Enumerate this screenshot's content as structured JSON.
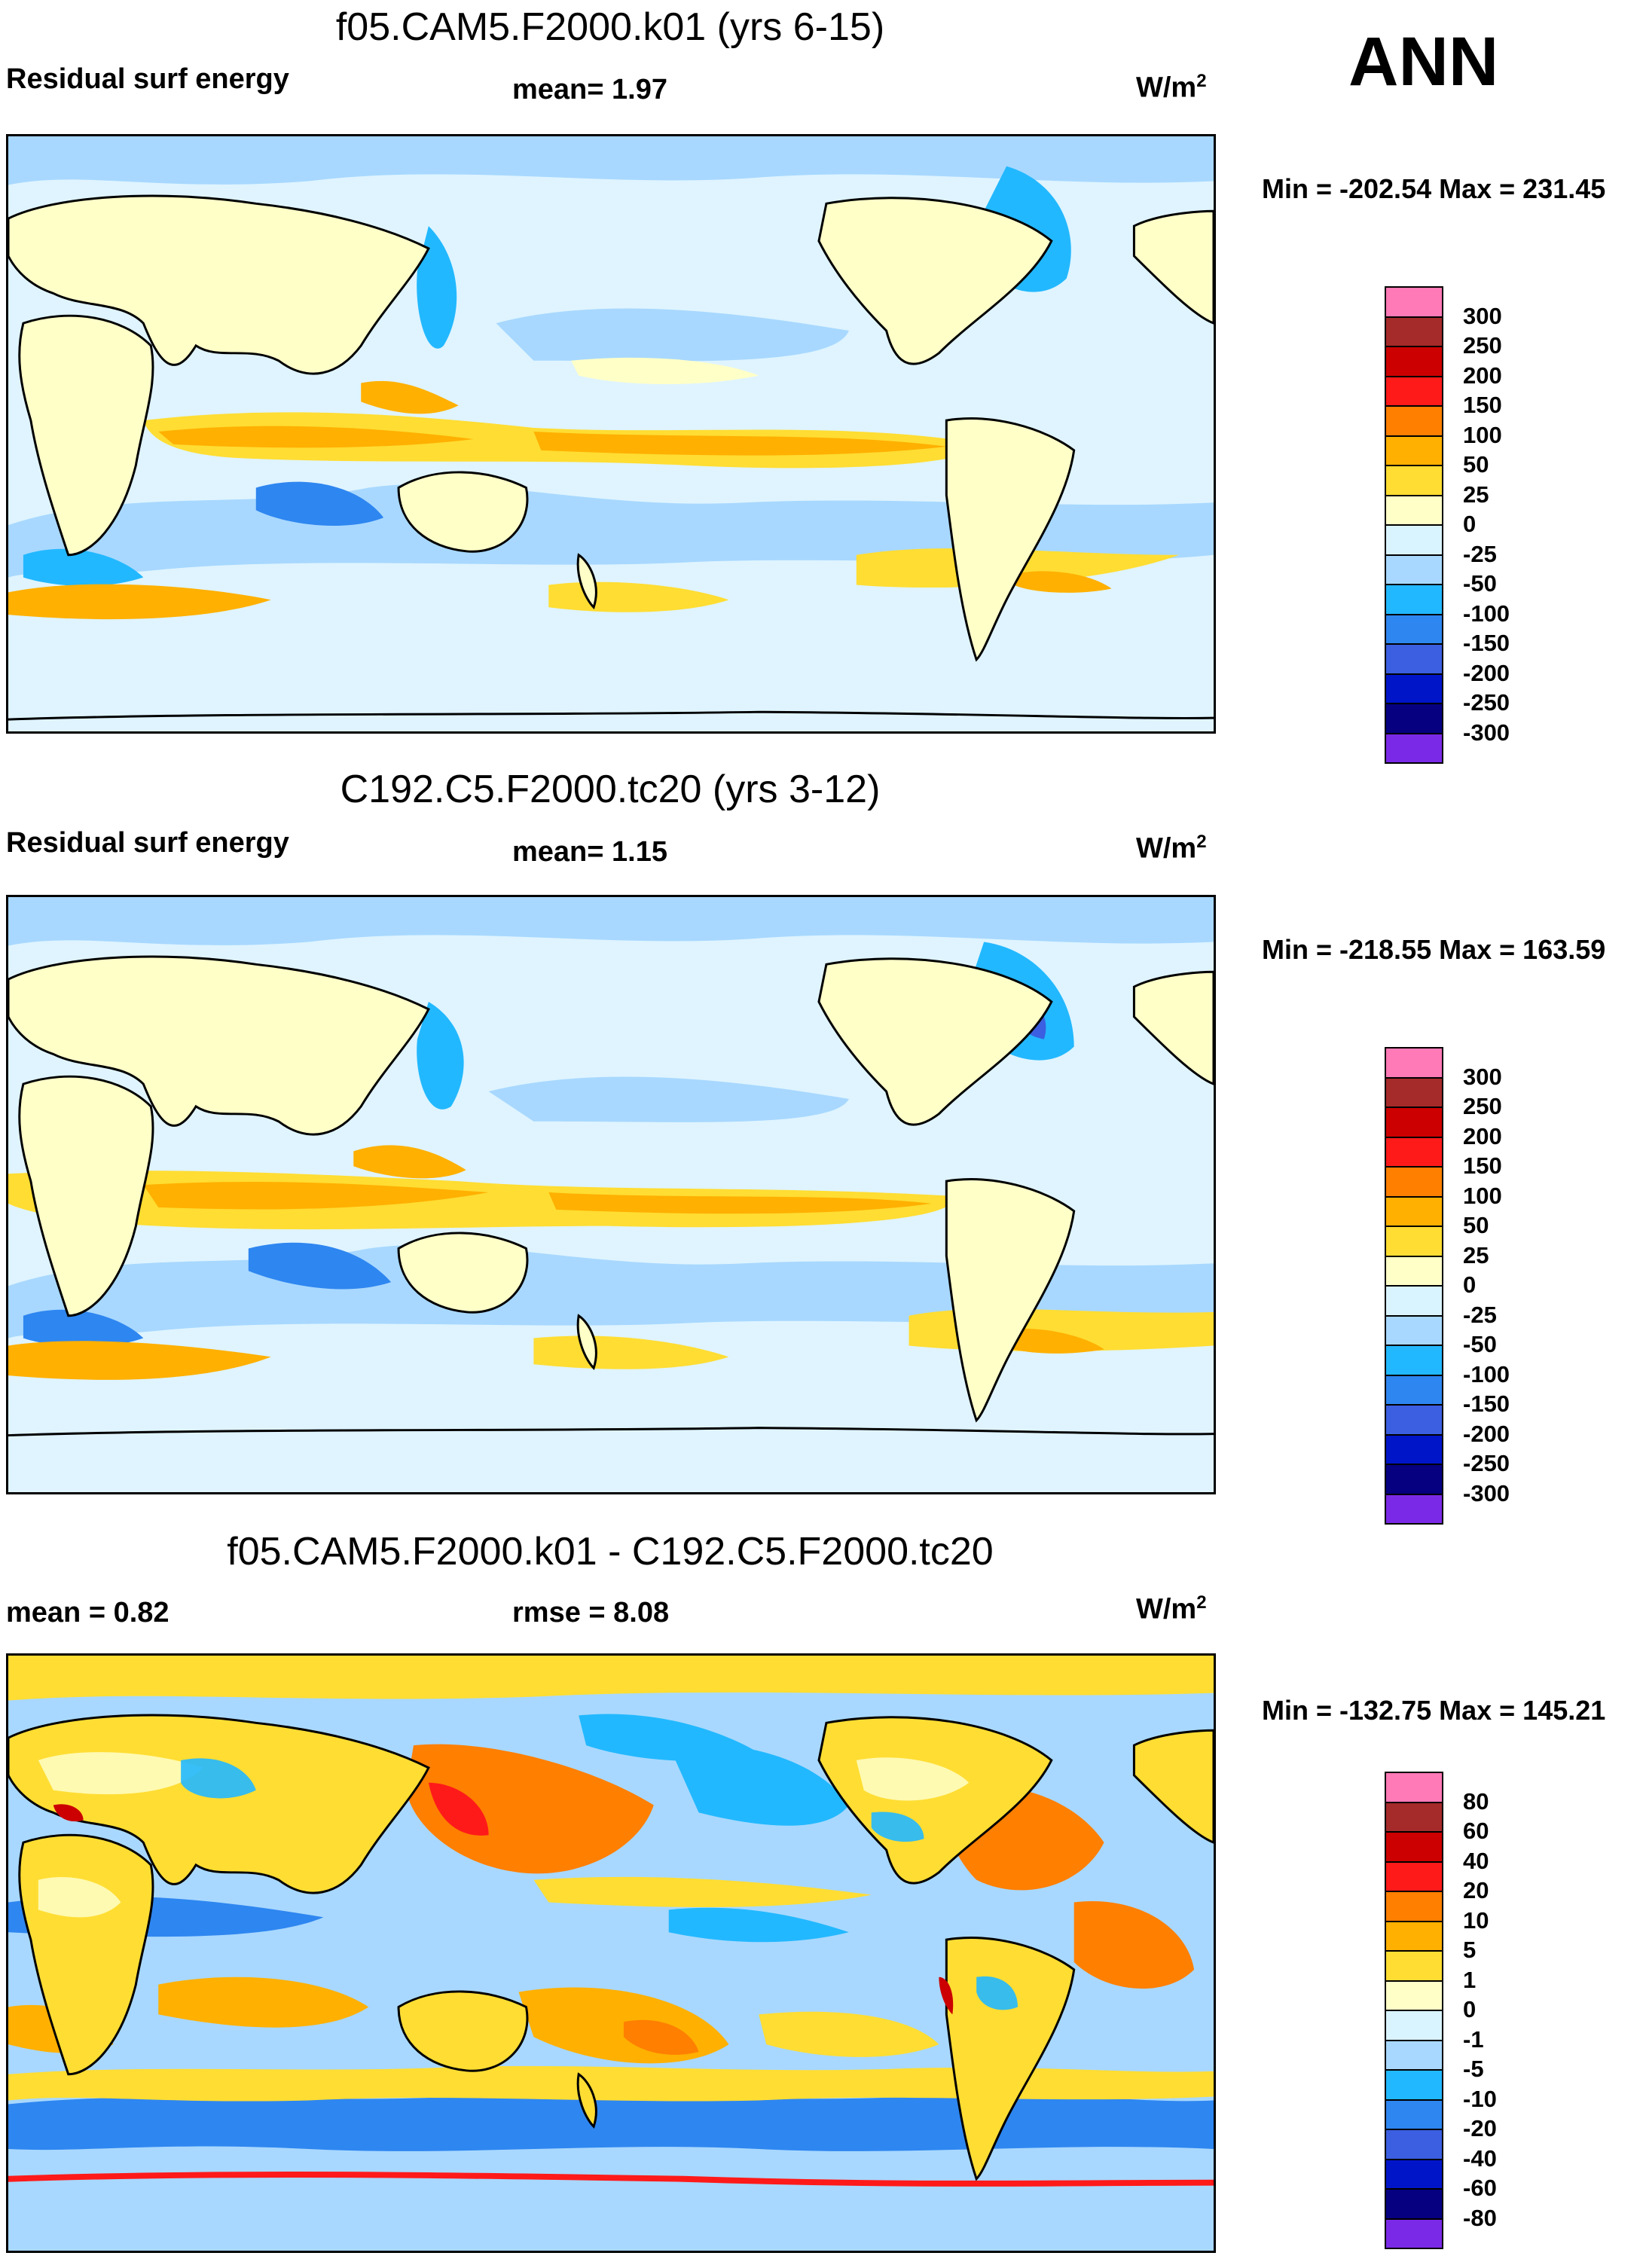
{
  "season": "ANN",
  "panels": [
    {
      "id": "panel1",
      "title": "f05.CAM5.F2000.k01 (yrs 6-15)",
      "left_label": "Residual surf energy",
      "center_label": "mean=   1.97",
      "units": "W/m",
      "units_sup": "2",
      "minmax": "Min = -202.54 Max = 231.45",
      "colorbar_labels": [
        "300",
        "250",
        "200",
        "150",
        "100",
        "50",
        "25",
        "0",
        "-25",
        "-50",
        "-100",
        "-150",
        "-200",
        "-250",
        "-300"
      ],
      "colors": [
        "#ff7ab7",
        "#a52a2a",
        "#cc0000",
        "#ff1a1a",
        "#ff7f00",
        "#ffb000",
        "#ffdd33",
        "#ffffc8",
        "#d9f3ff",
        "#a8d8ff",
        "#22b8ff",
        "#2e86f0",
        "#3b5fe0",
        "#0015c8",
        "#060080",
        "#7a2ae6"
      ]
    },
    {
      "id": "panel2",
      "title": "C192.C5.F2000.tc20 (yrs 3-12)",
      "left_label": "Residual surf energy",
      "center_label": "mean=   1.15",
      "units": "W/m",
      "units_sup": "2",
      "minmax": "Min = -218.55 Max = 163.59",
      "colorbar_labels": [
        "300",
        "250",
        "200",
        "150",
        "100",
        "50",
        "25",
        "0",
        "-25",
        "-50",
        "-100",
        "-150",
        "-200",
        "-250",
        "-300"
      ],
      "colors": [
        "#ff7ab7",
        "#a52a2a",
        "#cc0000",
        "#ff1a1a",
        "#ff7f00",
        "#ffb000",
        "#ffdd33",
        "#ffffc8",
        "#d9f3ff",
        "#a8d8ff",
        "#22b8ff",
        "#2e86f0",
        "#3b5fe0",
        "#0015c8",
        "#060080",
        "#7a2ae6"
      ]
    },
    {
      "id": "panel3",
      "title": "f05.CAM5.F2000.k01 - C192.C5.F2000.tc20",
      "left_label": "mean =   0.82",
      "center_label": "rmse =   8.08",
      "units": "W/m",
      "units_sup": "2",
      "minmax": "Min = -132.75 Max = 145.21",
      "colorbar_labels": [
        "80",
        "60",
        "40",
        "20",
        "10",
        "5",
        "1",
        "0",
        "-1",
        "-5",
        "-10",
        "-20",
        "-40",
        "-60",
        "-80"
      ],
      "colors": [
        "#ff7ab7",
        "#a52a2a",
        "#cc0000",
        "#ff1a1a",
        "#ff7f00",
        "#ffb000",
        "#ffdd33",
        "#ffffc8",
        "#d9f3ff",
        "#a8d8ff",
        "#22b8ff",
        "#2e86f0",
        "#3b5fe0",
        "#0015c8",
        "#060080",
        "#7a2ae6"
      ]
    }
  ]
}
